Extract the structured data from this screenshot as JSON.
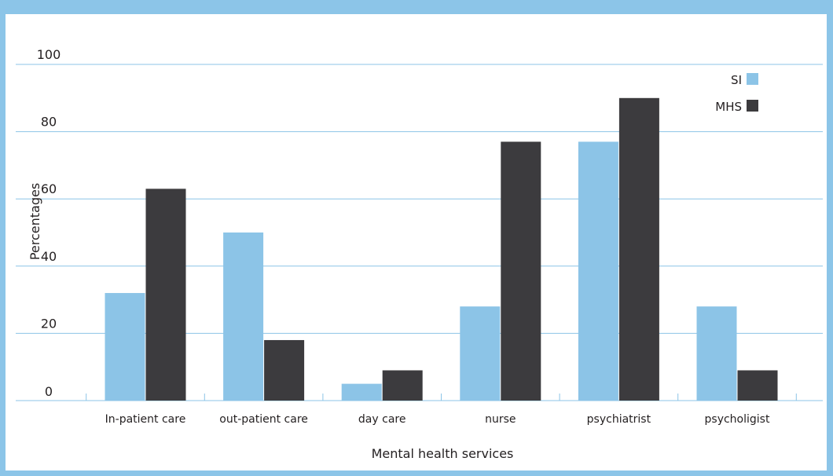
{
  "chart_data": {
    "type": "bar",
    "categories": [
      "In-patient care",
      "out-patient care",
      "day care",
      "nurse",
      "psychiatrist",
      "psycholigist"
    ],
    "series": [
      {
        "name": "SI",
        "color": "#8cc4e7",
        "values": [
          32,
          50,
          5,
          28,
          77,
          28
        ]
      },
      {
        "name": "MHS",
        "color": "#3c3b3e",
        "values": [
          63,
          18,
          9,
          77,
          90,
          9
        ]
      }
    ],
    "xlabel": "Mental health services",
    "ylabel": "Percentages",
    "ylim": [
      0,
      100
    ],
    "yticks": [
      "0",
      "20",
      "40",
      "60",
      "80",
      "100"
    ],
    "grid": true,
    "legend_position": "top-right"
  }
}
